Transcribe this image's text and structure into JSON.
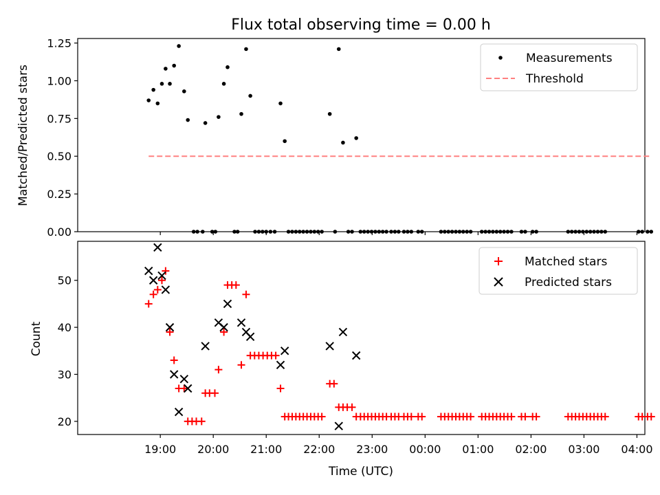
{
  "title": "Flux total observing time = 0.00 h",
  "x_ticks": [
    "19:00",
    "20:00",
    "21:00",
    "22:00",
    "23:00",
    "00:00",
    "01:00",
    "02:00",
    "03:00",
    "04:00"
  ],
  "xlabel": "Time (UTC)",
  "chart_data": [
    {
      "type": "scatter",
      "title": "Flux total observing time = 0.00 h",
      "xlabel": "",
      "ylabel": "Matched/Predicted stars",
      "x_unit": "hours since 18:00 UTC",
      "xlim": [
        17.44,
        28.15
      ],
      "ylim": [
        0,
        1.28
      ],
      "yticks": [
        "0.00",
        "0.25",
        "0.50",
        "0.75",
        "1.00",
        "1.25"
      ],
      "legend": {
        "position": "top-right",
        "labels": [
          "Measurements",
          "Threshold"
        ]
      },
      "series": [
        {
          "name": "Measurements",
          "marker": "dot",
          "color": "#000000",
          "points": [
            [
              18.78,
              0.87
            ],
            [
              18.87,
              0.94
            ],
            [
              18.95,
              0.85
            ],
            [
              19.03,
              0.98
            ],
            [
              19.1,
              1.08
            ],
            [
              19.18,
              0.98
            ],
            [
              19.26,
              1.1
            ],
            [
              19.35,
              1.23
            ],
            [
              19.45,
              0.93
            ],
            [
              19.52,
              0.74
            ],
            [
              19.85,
              0.72
            ],
            [
              20.1,
              0.76
            ],
            [
              20.2,
              0.98
            ],
            [
              20.27,
              1.09
            ],
            [
              20.53,
              0.78
            ],
            [
              20.62,
              1.21
            ],
            [
              20.7,
              0.9
            ],
            [
              21.27,
              0.85
            ],
            [
              21.35,
              0.6
            ],
            [
              22.2,
              0.78
            ],
            [
              22.37,
              1.21
            ],
            [
              22.45,
              0.59
            ],
            [
              22.7,
              0.62
            ],
            [
              19.63,
              0
            ],
            [
              19.7,
              0
            ],
            [
              19.8,
              0
            ],
            [
              19.98,
              0
            ],
            [
              20.04,
              0
            ],
            [
              20.4,
              0
            ],
            [
              20.46,
              0
            ],
            [
              20.79,
              0
            ],
            [
              20.86,
              0
            ],
            [
              20.93,
              0
            ],
            [
              21.0,
              0
            ],
            [
              21.08,
              0
            ],
            [
              21.16,
              0
            ],
            [
              21.42,
              0
            ],
            [
              21.49,
              0
            ],
            [
              21.56,
              0
            ],
            [
              21.63,
              0
            ],
            [
              21.7,
              0
            ],
            [
              21.77,
              0
            ],
            [
              21.84,
              0
            ],
            [
              21.91,
              0
            ],
            [
              21.98,
              0
            ],
            [
              22.05,
              0
            ],
            [
              22.3,
              0
            ],
            [
              22.55,
              0
            ],
            [
              22.62,
              0
            ],
            [
              22.78,
              0
            ],
            [
              22.85,
              0
            ],
            [
              22.92,
              0
            ],
            [
              22.99,
              0
            ],
            [
              23.06,
              0
            ],
            [
              23.13,
              0
            ],
            [
              23.2,
              0
            ],
            [
              23.27,
              0
            ],
            [
              23.36,
              0
            ],
            [
              23.43,
              0
            ],
            [
              23.5,
              0
            ],
            [
              23.6,
              0
            ],
            [
              23.67,
              0
            ],
            [
              23.74,
              0
            ],
            [
              23.87,
              0
            ],
            [
              23.94,
              0
            ],
            [
              24.3,
              0
            ],
            [
              24.37,
              0
            ],
            [
              24.44,
              0
            ],
            [
              24.51,
              0
            ],
            [
              24.58,
              0
            ],
            [
              24.65,
              0
            ],
            [
              24.72,
              0
            ],
            [
              24.79,
              0
            ],
            [
              24.86,
              0
            ],
            [
              25.07,
              0
            ],
            [
              25.14,
              0
            ],
            [
              25.21,
              0
            ],
            [
              25.28,
              0
            ],
            [
              25.35,
              0
            ],
            [
              25.42,
              0
            ],
            [
              25.49,
              0
            ],
            [
              25.56,
              0
            ],
            [
              25.63,
              0
            ],
            [
              25.82,
              0
            ],
            [
              25.89,
              0
            ],
            [
              26.03,
              0
            ],
            [
              26.1,
              0
            ],
            [
              26.7,
              0
            ],
            [
              26.77,
              0
            ],
            [
              26.84,
              0
            ],
            [
              26.91,
              0
            ],
            [
              26.98,
              0
            ],
            [
              27.05,
              0
            ],
            [
              27.12,
              0
            ],
            [
              27.19,
              0
            ],
            [
              27.26,
              0
            ],
            [
              27.33,
              0
            ],
            [
              27.4,
              0
            ],
            [
              28.03,
              0
            ],
            [
              28.1,
              0
            ],
            [
              28.2,
              0
            ],
            [
              28.27,
              0
            ]
          ]
        },
        {
          "name": "Threshold",
          "style": "dashed",
          "color": "#ff8080",
          "x": [
            18.78,
            28.27
          ],
          "y": [
            0.5,
            0.5
          ]
        }
      ]
    },
    {
      "type": "scatter",
      "xlabel": "Time (UTC)",
      "ylabel": "Count",
      "x_unit": "hours since 18:00 UTC",
      "xlim": [
        17.44,
        28.15
      ],
      "ylim": [
        17.2,
        58.3
      ],
      "yticks": [
        "20",
        "30",
        "40",
        "50"
      ],
      "legend": {
        "position": "top-right",
        "labels": [
          "Matched stars",
          "Predicted stars"
        ]
      },
      "series": [
        {
          "name": "Matched stars",
          "marker": "+",
          "color": "#ff0000",
          "points": [
            [
              18.78,
              45
            ],
            [
              18.87,
              47
            ],
            [
              18.95,
              48
            ],
            [
              19.03,
              50
            ],
            [
              19.1,
              52
            ],
            [
              19.18,
              39
            ],
            [
              19.26,
              33
            ],
            [
              19.35,
              27
            ],
            [
              19.45,
              27
            ],
            [
              19.52,
              20
            ],
            [
              19.6,
              20
            ],
            [
              19.68,
              20
            ],
            [
              19.78,
              20
            ],
            [
              19.85,
              26
            ],
            [
              19.93,
              26
            ],
            [
              20.03,
              26
            ],
            [
              20.1,
              31
            ],
            [
              20.2,
              39
            ],
            [
              20.27,
              49
            ],
            [
              20.35,
              49
            ],
            [
              20.43,
              49
            ],
            [
              20.53,
              32
            ],
            [
              20.62,
              47
            ],
            [
              20.7,
              34
            ],
            [
              20.78,
              34
            ],
            [
              20.86,
              34
            ],
            [
              20.94,
              34
            ],
            [
              21.02,
              34
            ],
            [
              21.1,
              34
            ],
            [
              21.18,
              34
            ],
            [
              21.27,
              27
            ],
            [
              21.35,
              21
            ],
            [
              21.42,
              21
            ],
            [
              21.49,
              21
            ],
            [
              21.56,
              21
            ],
            [
              21.63,
              21
            ],
            [
              21.7,
              21
            ],
            [
              21.77,
              21
            ],
            [
              21.84,
              21
            ],
            [
              21.91,
              21
            ],
            [
              21.98,
              21
            ],
            [
              22.05,
              21
            ],
            [
              22.2,
              28
            ],
            [
              22.28,
              28
            ],
            [
              22.37,
              23
            ],
            [
              22.45,
              23
            ],
            [
              22.53,
              23
            ],
            [
              22.62,
              23
            ],
            [
              22.7,
              21
            ],
            [
              22.78,
              21
            ],
            [
              22.85,
              21
            ],
            [
              22.92,
              21
            ],
            [
              22.99,
              21
            ],
            [
              23.06,
              21
            ],
            [
              23.13,
              21
            ],
            [
              23.2,
              21
            ],
            [
              23.27,
              21
            ],
            [
              23.36,
              21
            ],
            [
              23.43,
              21
            ],
            [
              23.5,
              21
            ],
            [
              23.6,
              21
            ],
            [
              23.67,
              21
            ],
            [
              23.74,
              21
            ],
            [
              23.87,
              21
            ],
            [
              23.94,
              21
            ],
            [
              24.3,
              21
            ],
            [
              24.37,
              21
            ],
            [
              24.44,
              21
            ],
            [
              24.51,
              21
            ],
            [
              24.58,
              21
            ],
            [
              24.65,
              21
            ],
            [
              24.72,
              21
            ],
            [
              24.79,
              21
            ],
            [
              24.86,
              21
            ],
            [
              25.07,
              21
            ],
            [
              25.14,
              21
            ],
            [
              25.21,
              21
            ],
            [
              25.28,
              21
            ],
            [
              25.35,
              21
            ],
            [
              25.42,
              21
            ],
            [
              25.49,
              21
            ],
            [
              25.56,
              21
            ],
            [
              25.63,
              21
            ],
            [
              25.82,
              21
            ],
            [
              25.89,
              21
            ],
            [
              26.03,
              21
            ],
            [
              26.1,
              21
            ],
            [
              26.7,
              21
            ],
            [
              26.77,
              21
            ],
            [
              26.84,
              21
            ],
            [
              26.91,
              21
            ],
            [
              26.98,
              21
            ],
            [
              27.05,
              21
            ],
            [
              27.12,
              21
            ],
            [
              27.19,
              21
            ],
            [
              27.26,
              21
            ],
            [
              27.33,
              21
            ],
            [
              27.4,
              21
            ],
            [
              28.03,
              21
            ],
            [
              28.1,
              21
            ],
            [
              28.2,
              21
            ],
            [
              28.27,
              21
            ]
          ]
        },
        {
          "name": "Predicted stars",
          "marker": "x",
          "color": "#000000",
          "points": [
            [
              18.78,
              52
            ],
            [
              18.87,
              50
            ],
            [
              18.95,
              57
            ],
            [
              19.03,
              51
            ],
            [
              19.1,
              48
            ],
            [
              19.18,
              40
            ],
            [
              19.26,
              30
            ],
            [
              19.35,
              22
            ],
            [
              19.45,
              29
            ],
            [
              19.52,
              27
            ],
            [
              19.85,
              36
            ],
            [
              20.1,
              41
            ],
            [
              20.2,
              40
            ],
            [
              20.27,
              45
            ],
            [
              20.53,
              41
            ],
            [
              20.62,
              39
            ],
            [
              20.7,
              38
            ],
            [
              21.27,
              32
            ],
            [
              21.35,
              35
            ],
            [
              22.2,
              36
            ],
            [
              22.37,
              19
            ],
            [
              22.45,
              39
            ],
            [
              22.7,
              34
            ]
          ]
        }
      ]
    }
  ]
}
